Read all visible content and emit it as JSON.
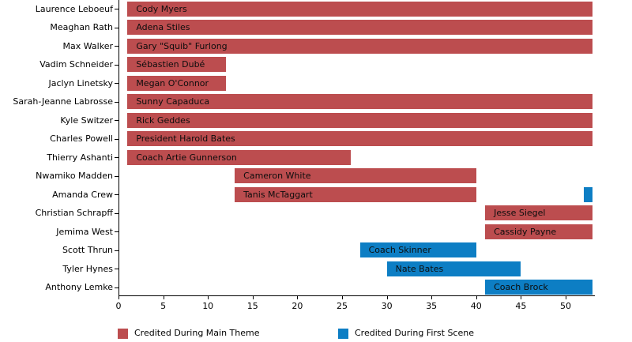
{
  "chart_data": {
    "type": "bar",
    "subtype": "horizontal-gantt",
    "title": "",
    "xlabel": "",
    "ylabel": "",
    "xlim": [
      0,
      53
    ],
    "x_ticks": [
      0,
      5,
      10,
      15,
      20,
      25,
      30,
      35,
      40,
      45,
      50
    ],
    "grid": "off",
    "legend_position": "bottom",
    "colors": {
      "main_theme": "#bc4d4f",
      "first_scene": "#0d7ec4",
      "axis": "#000000",
      "bar_text": "#0d0d0d",
      "background": "#ffffff"
    },
    "legend": [
      {
        "label": "Credited During Main Theme",
        "color_key": "main_theme"
      },
      {
        "label": "Credited During First Scene",
        "color_key": "first_scene"
      }
    ],
    "rows": [
      {
        "actor": "Laurence Leboeuf",
        "character": "Cody Myers",
        "segments": [
          {
            "start": 1,
            "end": 53,
            "type": "main_theme"
          }
        ]
      },
      {
        "actor": "Meaghan Rath",
        "character": "Adena Stiles",
        "segments": [
          {
            "start": 1,
            "end": 53,
            "type": "main_theme"
          }
        ]
      },
      {
        "actor": "Max Walker",
        "character": "Gary \"Squib\" Furlong",
        "segments": [
          {
            "start": 1,
            "end": 53,
            "type": "main_theme"
          }
        ]
      },
      {
        "actor": "Vadim Schneider",
        "character": "Sébastien Dubé",
        "segments": [
          {
            "start": 1,
            "end": 12,
            "type": "main_theme"
          }
        ]
      },
      {
        "actor": "Jaclyn Linetsky",
        "character": "Megan O'Connor",
        "segments": [
          {
            "start": 1,
            "end": 12,
            "type": "main_theme"
          }
        ]
      },
      {
        "actor": "Sarah-Jeanne Labrosse",
        "character": "Sunny Capaduca",
        "segments": [
          {
            "start": 1,
            "end": 53,
            "type": "main_theme"
          }
        ]
      },
      {
        "actor": "Kyle Switzer",
        "character": "Rick Geddes",
        "segments": [
          {
            "start": 1,
            "end": 53,
            "type": "main_theme"
          }
        ]
      },
      {
        "actor": "Charles Powell",
        "character": "President Harold Bates",
        "segments": [
          {
            "start": 1,
            "end": 53,
            "type": "main_theme"
          }
        ]
      },
      {
        "actor": "Thierry Ashanti",
        "character": "Coach Artie Gunnerson",
        "segments": [
          {
            "start": 1,
            "end": 26,
            "type": "main_theme"
          }
        ]
      },
      {
        "actor": "Nwamiko Madden",
        "character": "Cameron White",
        "segments": [
          {
            "start": 13,
            "end": 40,
            "type": "main_theme"
          }
        ]
      },
      {
        "actor": "Amanda Crew",
        "character": "Tanis McTaggart",
        "segments": [
          {
            "start": 13,
            "end": 40,
            "type": "main_theme"
          },
          {
            "start": 52,
            "end": 53,
            "type": "first_scene"
          }
        ]
      },
      {
        "actor": "Christian Schrapff",
        "character": "Jesse Siegel",
        "segments": [
          {
            "start": 41,
            "end": 53,
            "type": "main_theme"
          }
        ]
      },
      {
        "actor": "Jemima West",
        "character": "Cassidy Payne",
        "segments": [
          {
            "start": 41,
            "end": 53,
            "type": "main_theme"
          }
        ]
      },
      {
        "actor": "Scott Thrun",
        "character": "Coach Skinner",
        "segments": [
          {
            "start": 27,
            "end": 40,
            "type": "first_scene"
          }
        ]
      },
      {
        "actor": "Tyler Hynes",
        "character": "Nate Bates",
        "segments": [
          {
            "start": 30,
            "end": 45,
            "type": "first_scene"
          }
        ]
      },
      {
        "actor": "Anthony Lemke",
        "character": "Coach Brock",
        "segments": [
          {
            "start": 41,
            "end": 53,
            "type": "first_scene"
          }
        ]
      }
    ]
  }
}
